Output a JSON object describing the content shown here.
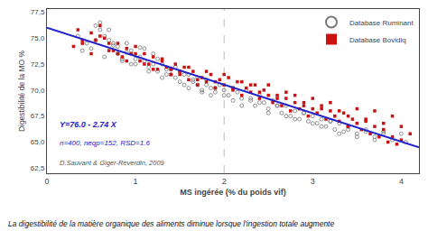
{
  "chart_data": {
    "type": "scatter",
    "xlabel": "MS ingérée (% du poids vif)",
    "ylabel": "Digestibilité de la MO %",
    "xlim": [
      0,
      4.2
    ],
    "ylim": [
      62.0,
      77.8
    ],
    "xticks": [
      0,
      1,
      2,
      3,
      4
    ],
    "yticks": [
      {
        "value": 62.5,
        "label": "62,5"
      },
      {
        "value": 65.0,
        "label": "65,0"
      },
      {
        "value": 67.5,
        "label": "67,5"
      },
      {
        "value": 70.0,
        "label": "70,0"
      },
      {
        "value": 72.5,
        "label": "72,5"
      },
      {
        "value": 75.0,
        "label": "75,0"
      },
      {
        "value": 77.5,
        "label": "77,5"
      }
    ],
    "grid": false,
    "legend": "upper right",
    "series": [
      {
        "name": "Database Ruminant",
        "color": "#777777",
        "marker": "circle-open",
        "points": [
          [
            0.35,
            75.2
          ],
          [
            0.4,
            73.8
          ],
          [
            0.45,
            74.5
          ],
          [
            0.5,
            74.0
          ],
          [
            0.55,
            76.2
          ],
          [
            0.6,
            75.8
          ],
          [
            0.65,
            73.2
          ],
          [
            0.7,
            74.8
          ],
          [
            0.75,
            74.3
          ],
          [
            0.8,
            73.5
          ],
          [
            0.85,
            72.8
          ],
          [
            0.9,
            73.6
          ],
          [
            0.95,
            72.5
          ],
          [
            1.0,
            73.0
          ],
          [
            1.05,
            74.1
          ],
          [
            1.1,
            72.8
          ],
          [
            1.15,
            72.2
          ],
          [
            1.2,
            73.5
          ],
          [
            1.25,
            71.8
          ],
          [
            1.3,
            72.5
          ],
          [
            1.35,
            71.5
          ],
          [
            1.4,
            72.0
          ],
          [
            1.45,
            71.2
          ],
          [
            1.5,
            71.8
          ],
          [
            1.55,
            70.5
          ],
          [
            1.6,
            71.5
          ],
          [
            1.65,
            70.8
          ],
          [
            1.7,
            71.2
          ],
          [
            1.75,
            70.0
          ],
          [
            1.8,
            71.0
          ],
          [
            1.85,
            70.2
          ],
          [
            1.9,
            69.8
          ],
          [
            1.95,
            70.5
          ],
          [
            2.0,
            70.0
          ],
          [
            2.05,
            69.5
          ],
          [
            2.1,
            70.2
          ],
          [
            2.15,
            69.8
          ],
          [
            2.2,
            69.2
          ],
          [
            2.25,
            70.0
          ],
          [
            2.3,
            69.0
          ],
          [
            2.35,
            68.5
          ],
          [
            2.4,
            69.5
          ],
          [
            2.45,
            68.8
          ],
          [
            2.5,
            68.2
          ],
          [
            2.55,
            69.0
          ],
          [
            2.6,
            68.5
          ],
          [
            2.65,
            67.8
          ],
          [
            2.7,
            68.5
          ],
          [
            2.75,
            67.5
          ],
          [
            2.8,
            68.0
          ],
          [
            2.85,
            67.2
          ],
          [
            2.9,
            67.8
          ],
          [
            2.95,
            67.0
          ],
          [
            3.0,
            67.5
          ],
          [
            3.05,
            66.8
          ],
          [
            3.1,
            67.2
          ],
          [
            3.15,
            66.5
          ],
          [
            3.2,
            67.0
          ],
          [
            3.25,
            66.2
          ],
          [
            3.3,
            66.8
          ],
          [
            3.35,
            66.0
          ],
          [
            3.4,
            66.5
          ],
          [
            3.5,
            65.8
          ],
          [
            3.6,
            66.2
          ],
          [
            3.7,
            65.5
          ],
          [
            3.8,
            66.0
          ],
          [
            3.9,
            65.2
          ],
          [
            4.0,
            65.8
          ],
          [
            4.05,
            65.0
          ],
          [
            0.55,
            74.8
          ],
          [
            0.6,
            76.5
          ],
          [
            0.65,
            75.2
          ],
          [
            0.7,
            75.8
          ],
          [
            0.75,
            74.5
          ],
          [
            0.8,
            74.2
          ],
          [
            0.85,
            73.0
          ],
          [
            0.9,
            74.5
          ],
          [
            0.95,
            73.8
          ],
          [
            1.0,
            72.5
          ],
          [
            1.05,
            73.2
          ],
          [
            1.1,
            74.0
          ],
          [
            1.15,
            71.8
          ],
          [
            1.2,
            72.5
          ],
          [
            1.25,
            73.0
          ],
          [
            1.3,
            71.2
          ],
          [
            1.35,
            72.0
          ],
          [
            1.4,
            71.5
          ],
          [
            1.45,
            72.2
          ],
          [
            1.5,
            70.8
          ],
          [
            1.55,
            71.5
          ],
          [
            1.6,
            70.2
          ],
          [
            1.65,
            71.0
          ],
          [
            1.7,
            70.5
          ],
          [
            1.75,
            69.8
          ],
          [
            1.8,
            70.5
          ],
          [
            1.85,
            69.5
          ],
          [
            1.9,
            70.2
          ],
          [
            2.0,
            69.5
          ],
          [
            2.1,
            69.0
          ],
          [
            2.2,
            68.5
          ],
          [
            2.3,
            69.2
          ],
          [
            2.4,
            68.8
          ],
          [
            2.5,
            67.8
          ],
          [
            2.6,
            68.5
          ],
          [
            2.7,
            67.5
          ],
          [
            2.8,
            67.2
          ],
          [
            2.9,
            67.8
          ],
          [
            3.0,
            66.8
          ],
          [
            3.1,
            66.5
          ],
          [
            3.2,
            67.0
          ],
          [
            3.3,
            65.8
          ],
          [
            3.4,
            66.2
          ],
          [
            3.5,
            65.5
          ],
          [
            3.6,
            66.0
          ],
          [
            3.7,
            65.2
          ],
          [
            3.8,
            65.8
          ]
        ]
      },
      {
        "name": "Database Bovidiq",
        "color": "#cc1111",
        "marker": "square",
        "points": [
          [
            0.3,
            74.2
          ],
          [
            0.35,
            75.8
          ],
          [
            0.4,
            74.5
          ],
          [
            0.5,
            75.5
          ],
          [
            0.55,
            74.8
          ],
          [
            0.6,
            76.2
          ],
          [
            0.65,
            75.0
          ],
          [
            0.7,
            74.5
          ],
          [
            0.75,
            73.8
          ],
          [
            0.8,
            74.5
          ],
          [
            0.85,
            73.2
          ],
          [
            0.9,
            74.0
          ],
          [
            0.95,
            73.5
          ],
          [
            1.0,
            74.2
          ],
          [
            1.05,
            72.8
          ],
          [
            1.1,
            73.5
          ],
          [
            1.15,
            72.5
          ],
          [
            1.2,
            73.2
          ],
          [
            1.25,
            72.0
          ],
          [
            1.3,
            73.0
          ],
          [
            1.35,
            72.2
          ],
          [
            1.4,
            71.5
          ],
          [
            1.45,
            72.5
          ],
          [
            1.5,
            71.8
          ],
          [
            1.55,
            72.2
          ],
          [
            1.6,
            71.0
          ],
          [
            1.65,
            71.8
          ],
          [
            1.7,
            70.5
          ],
          [
            1.75,
            71.2
          ],
          [
            1.8,
            70.8
          ],
          [
            1.85,
            71.5
          ],
          [
            1.9,
            70.2
          ],
          [
            1.95,
            71.0
          ],
          [
            2.0,
            70.5
          ],
          [
            2.05,
            71.2
          ],
          [
            2.1,
            70.0
          ],
          [
            2.15,
            70.8
          ],
          [
            2.2,
            69.5
          ],
          [
            2.25,
            70.2
          ],
          [
            2.3,
            69.8
          ],
          [
            2.35,
            70.5
          ],
          [
            2.4,
            69.2
          ],
          [
            2.45,
            70.0
          ],
          [
            2.5,
            69.5
          ],
          [
            2.55,
            68.8
          ],
          [
            2.6,
            69.5
          ],
          [
            2.65,
            68.5
          ],
          [
            2.7,
            69.2
          ],
          [
            2.75,
            68.0
          ],
          [
            2.8,
            68.8
          ],
          [
            2.85,
            68.2
          ],
          [
            2.9,
            68.8
          ],
          [
            2.95,
            67.5
          ],
          [
            3.0,
            68.2
          ],
          [
            3.05,
            67.8
          ],
          [
            3.1,
            68.5
          ],
          [
            3.15,
            67.2
          ],
          [
            3.2,
            68.0
          ],
          [
            3.25,
            67.5
          ],
          [
            3.3,
            67.0
          ],
          [
            3.35,
            67.8
          ],
          [
            3.4,
            66.5
          ],
          [
            3.45,
            67.2
          ],
          [
            3.5,
            66.8
          ],
          [
            3.55,
            66.2
          ],
          [
            3.6,
            67.0
          ],
          [
            3.65,
            65.8
          ],
          [
            3.7,
            66.5
          ],
          [
            3.75,
            65.5
          ],
          [
            3.8,
            66.2
          ],
          [
            3.85,
            65.0
          ],
          [
            3.9,
            65.5
          ],
          [
            3.95,
            64.8
          ],
          [
            4.0,
            65.2
          ],
          [
            0.4,
            74.8
          ],
          [
            0.5,
            73.5
          ],
          [
            0.6,
            75.2
          ],
          [
            0.7,
            73.8
          ],
          [
            0.8,
            73.5
          ],
          [
            0.9,
            72.8
          ],
          [
            1.0,
            73.5
          ],
          [
            1.1,
            72.5
          ],
          [
            1.2,
            72.0
          ],
          [
            1.3,
            72.8
          ],
          [
            1.4,
            72.0
          ],
          [
            1.5,
            71.5
          ],
          [
            1.6,
            72.2
          ],
          [
            1.7,
            71.0
          ],
          [
            1.8,
            71.8
          ],
          [
            1.9,
            70.8
          ],
          [
            2.0,
            71.5
          ],
          [
            2.1,
            70.2
          ],
          [
            2.2,
            70.8
          ],
          [
            2.3,
            70.5
          ],
          [
            2.4,
            69.8
          ],
          [
            2.5,
            70.5
          ],
          [
            2.6,
            69.2
          ],
          [
            2.7,
            69.8
          ],
          [
            2.8,
            69.5
          ],
          [
            2.9,
            68.5
          ],
          [
            3.0,
            69.2
          ],
          [
            3.1,
            68.2
          ],
          [
            3.2,
            68.8
          ],
          [
            3.3,
            68.0
          ],
          [
            3.4,
            67.5
          ],
          [
            3.5,
            68.2
          ],
          [
            3.6,
            67.2
          ],
          [
            3.7,
            68.0
          ],
          [
            3.8,
            66.8
          ],
          [
            3.9,
            67.5
          ],
          [
            4.0,
            66.5
          ],
          [
            4.1,
            65.8
          ]
        ]
      }
    ],
    "lines": [
      {
        "x": [
          0.0,
          4.2
        ],
        "values": [
          76.0,
          64.492
        ],
        "color": "#2222cc"
      }
    ],
    "reference_lines": [
      {
        "x": 2.0,
        "color": "#bbbbbb",
        "line_style": "dashed"
      }
    ],
    "annotations": [
      {
        "text": "Y=76.0 - 2.74 X",
        "color": "#2222cc"
      },
      {
        "text": "n=400, neqp=152, RSD=1.6",
        "color": "#2222cc"
      },
      {
        "text": "D.Sauvant & Giger-Reverdin, 2009",
        "color": "#555555"
      }
    ],
    "caption": "La digestibilité de la matière organique des aliments diminue lorsque l'ingestion totale augmente"
  }
}
